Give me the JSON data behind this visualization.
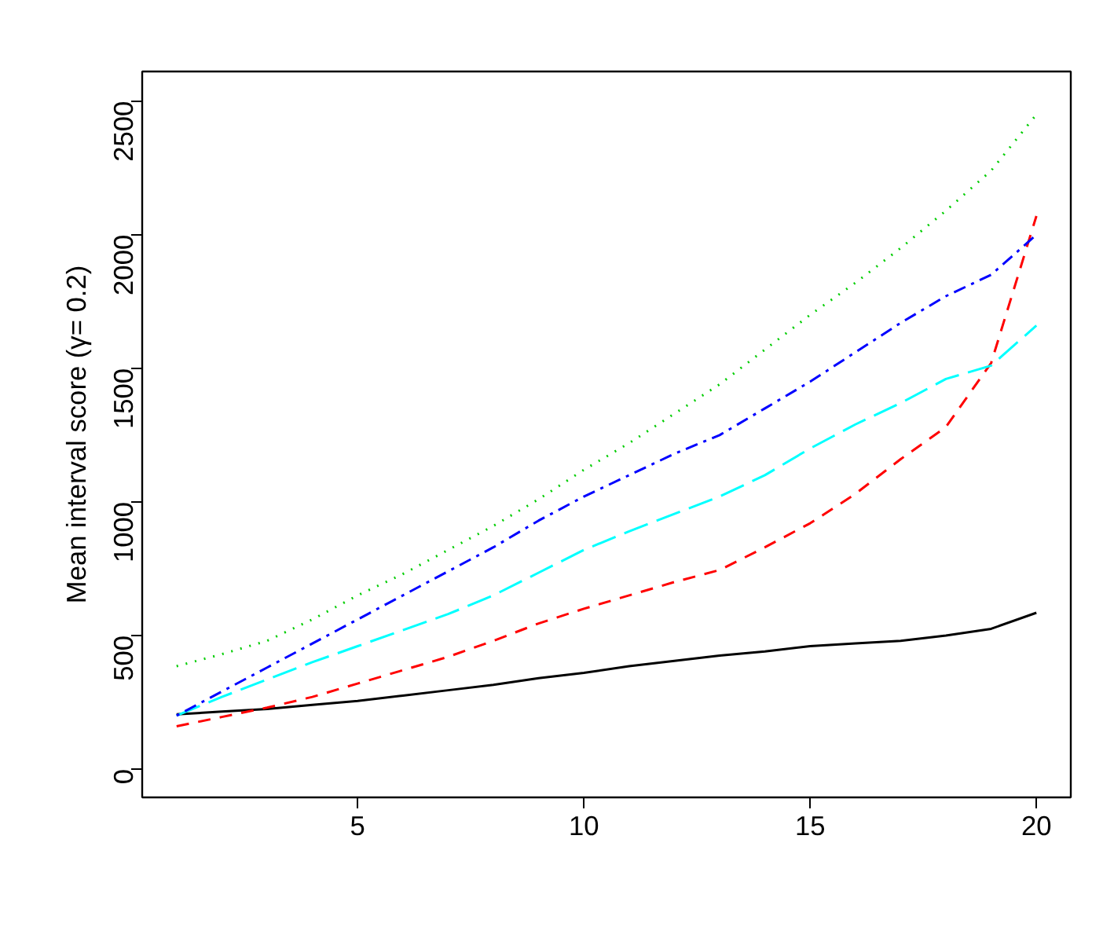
{
  "chart_data": {
    "type": "line",
    "ylabel": "Mean interval score (γ= 0.2)",
    "x": [
      1,
      2,
      3,
      4,
      5,
      6,
      7,
      8,
      9,
      10,
      11,
      12,
      13,
      14,
      15,
      16,
      17,
      18,
      19,
      20
    ],
    "xlim": [
      0.24,
      20.76
    ],
    "xticks": [
      5,
      10,
      15,
      20
    ],
    "ylim": [
      -106,
      2611
    ],
    "yticks": [
      0,
      500,
      1000,
      1500,
      2000,
      2500
    ],
    "grid": false,
    "marker": "none",
    "series": [
      {
        "color": "#000000",
        "line_style": "solid",
        "values": [
          205,
          215,
          225,
          240,
          255,
          275,
          295,
          315,
          340,
          360,
          385,
          405,
          425,
          440,
          460,
          470,
          480,
          500,
          525,
          585
        ]
      },
      {
        "color": "#ff0000",
        "line_style": "dashed",
        "values": [
          160,
          195,
          230,
          270,
          320,
          370,
          420,
          480,
          545,
          600,
          650,
          700,
          745,
          830,
          920,
          1030,
          1160,
          1280,
          1520,
          2070
        ]
      },
      {
        "color": "#00ffff",
        "line_style": "longdash",
        "values": [
          200,
          270,
          335,
          400,
          460,
          520,
          580,
          650,
          735,
          820,
          890,
          955,
          1020,
          1100,
          1200,
          1290,
          1370,
          1460,
          1510,
          1660
        ]
      },
      {
        "color": "#0000ff",
        "line_style": "dashdot",
        "values": [
          200,
          290,
          380,
          470,
          560,
          650,
          740,
          830,
          930,
          1020,
          1100,
          1180,
          1250,
          1350,
          1450,
          1560,
          1670,
          1770,
          1850,
          2000
        ]
      },
      {
        "color": "#00cd00",
        "line_style": "dotted",
        "values": [
          385,
          430,
          480,
          560,
          650,
          730,
          820,
          910,
          1010,
          1120,
          1220,
          1330,
          1440,
          1570,
          1700,
          1820,
          1950,
          2090,
          2240,
          2450
        ]
      }
    ]
  }
}
